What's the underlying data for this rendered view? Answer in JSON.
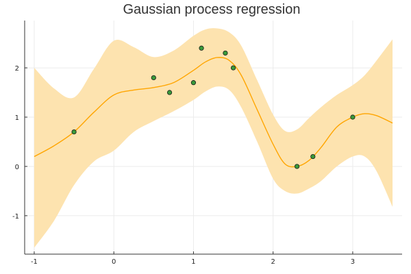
{
  "chart_data": {
    "type": "line",
    "title": "Gaussian process regression",
    "xlabel": "",
    "ylabel": "",
    "xlim": [
      -1.12,
      3.62
    ],
    "ylim": [
      -1.78,
      2.96
    ],
    "grid": true,
    "x_ticks": [
      -1,
      0,
      1,
      2,
      3
    ],
    "x_tick_labels": [
      "-1",
      "0",
      "1",
      "2",
      "3"
    ],
    "y_ticks": [
      -1,
      0,
      1,
      2
    ],
    "y_tick_labels": [
      "-1",
      "0",
      "1",
      "2"
    ],
    "colors": {
      "mean_line": "#ffa500",
      "band_fill": "#fde3af",
      "points_fill": "#3a9a3a",
      "points_stroke": "#1a1a1a",
      "axis": "#333333",
      "grid": "#ebebeb"
    },
    "mean_curve": {
      "x": [
        -1.0,
        -0.75,
        -0.5,
        -0.25,
        0.0,
        0.25,
        0.5,
        0.75,
        1.0,
        1.15,
        1.3,
        1.45,
        1.6,
        1.8,
        2.0,
        2.15,
        2.3,
        2.45,
        2.6,
        2.8,
        3.0,
        3.15,
        3.3,
        3.5
      ],
      "y": [
        0.2,
        0.42,
        0.7,
        1.1,
        1.45,
        1.55,
        1.6,
        1.7,
        1.95,
        2.12,
        2.21,
        2.15,
        1.85,
        1.15,
        0.45,
        0.05,
        0.0,
        0.12,
        0.38,
        0.8,
        1.0,
        1.07,
        1.03,
        0.88
      ]
    },
    "band_upper": {
      "x": [
        -1.0,
        -0.75,
        -0.5,
        -0.25,
        0.0,
        0.25,
        0.5,
        0.75,
        1.0,
        1.15,
        1.3,
        1.45,
        1.6,
        1.8,
        2.0,
        2.15,
        2.3,
        2.45,
        2.6,
        2.8,
        3.0,
        3.15,
        3.3,
        3.5
      ],
      "y": [
        2.0,
        1.58,
        1.4,
        1.98,
        2.55,
        2.42,
        2.22,
        2.35,
        2.65,
        2.78,
        2.8,
        2.72,
        2.45,
        1.75,
        1.05,
        0.72,
        0.75,
        0.98,
        1.2,
        1.45,
        1.65,
        1.85,
        2.15,
        2.58
      ]
    },
    "band_lower": {
      "x": [
        -1.0,
        -0.75,
        -0.5,
        -0.25,
        0.0,
        0.25,
        0.5,
        0.75,
        1.0,
        1.15,
        1.3,
        1.45,
        1.6,
        1.8,
        2.0,
        2.15,
        2.3,
        2.45,
        2.6,
        2.8,
        3.0,
        3.15,
        3.3,
        3.5
      ],
      "y": [
        -1.65,
        -1.1,
        -0.38,
        0.1,
        0.32,
        0.7,
        0.92,
        1.12,
        1.35,
        1.52,
        1.62,
        1.55,
        1.2,
        0.5,
        -0.25,
        -0.5,
        -0.55,
        -0.45,
        -0.3,
        0.0,
        0.2,
        0.2,
        -0.1,
        -0.82
      ]
    },
    "points": {
      "x": [
        -0.5,
        0.5,
        0.7,
        1.0,
        1.1,
        1.4,
        1.5,
        2.3,
        2.5,
        3.0
      ],
      "y": [
        0.7,
        1.8,
        1.5,
        1.7,
        2.4,
        2.3,
        2.0,
        0.0,
        0.2,
        1.0
      ]
    }
  }
}
